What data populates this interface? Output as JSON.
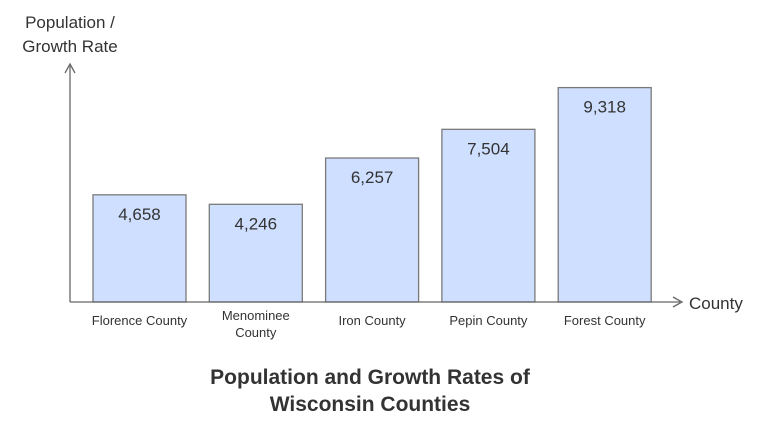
{
  "chart_data": {
    "type": "bar",
    "title": "Population and Growth Rates of Wisconsin Counties",
    "title_lines": [
      "Population and Growth Rates of",
      "Wisconsin Counties"
    ],
    "ylabel_lines": [
      "Population /",
      "Growth Rate"
    ],
    "xlabel": "County",
    "categories": [
      "Florence County",
      "Menominee County",
      "Iron County",
      "Pepin County",
      "Forest County"
    ],
    "category_lines": [
      [
        "Florence County"
      ],
      [
        "Menominee",
        "County"
      ],
      [
        "Iron County"
      ],
      [
        "Pepin County"
      ],
      [
        "Forest County"
      ]
    ],
    "values": [
      4658,
      4246,
      6257,
      7504,
      9318
    ],
    "data_labels": [
      "4,658",
      "4,246",
      "6,257",
      "7,504",
      "9,318"
    ],
    "ylim": [
      0,
      10300
    ],
    "grid": false,
    "colors": {
      "bar_fill": "#cfdfff",
      "bar_stroke": "#7a7a7a",
      "axis": "#666666",
      "text": "#333333"
    }
  }
}
